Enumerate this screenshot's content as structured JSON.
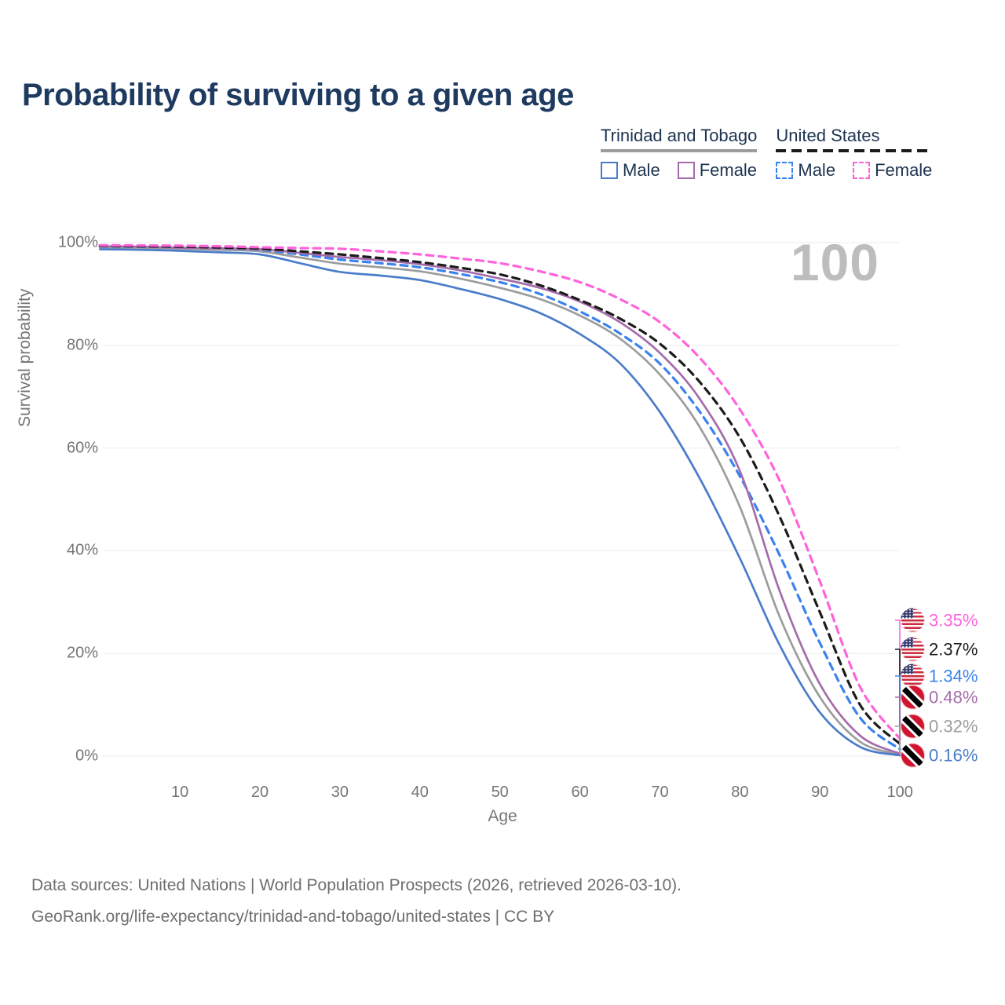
{
  "title": "Probability of surviving to a given age",
  "watermark": "100",
  "legend": {
    "groups": [
      {
        "name": "Trinidad and Tobago",
        "line_style": "solid",
        "rule_color": "#9c9c9c",
        "items": [
          {
            "label": "Male",
            "color": "#4a7cc9",
            "dashed": false
          },
          {
            "label": "Female",
            "color": "#a56cab",
            "dashed": false
          }
        ]
      },
      {
        "name": "United States",
        "line_style": "dashed",
        "rule_color": "#1a1a1a",
        "items": [
          {
            "label": "Male",
            "color": "#3b82ee",
            "dashed": true
          },
          {
            "label": "Female",
            "color": "#ff63dc",
            "dashed": true
          }
        ]
      }
    ]
  },
  "chart_data": {
    "type": "line",
    "title": "Probability of surviving to a given age",
    "xlabel": "Age",
    "ylabel": "Survival probability",
    "xlim": [
      0,
      100
    ],
    "ylim": [
      0,
      100
    ],
    "grid": "horizontal",
    "x_ticks": [
      10,
      20,
      30,
      40,
      50,
      60,
      70,
      80,
      90,
      100
    ],
    "y_ticks": [
      "0%",
      "20%",
      "40%",
      "60%",
      "80%",
      "100%"
    ],
    "x": [
      0,
      5,
      10,
      15,
      20,
      25,
      30,
      35,
      40,
      45,
      50,
      55,
      60,
      65,
      70,
      75,
      80,
      85,
      90,
      95,
      100
    ],
    "series": [
      {
        "name": "Trinidad and Tobago — Total",
        "country": "tt",
        "color": "#9c9c9c",
        "dashed": false,
        "values": [
          99.1,
          99.0,
          98.8,
          98.6,
          98.3,
          97.1,
          95.9,
          95.2,
          94.4,
          93.0,
          91.2,
          89.0,
          85.8,
          81.3,
          74.3,
          64.0,
          48.5,
          27.0,
          11.5,
          2.8,
          0.32
        ],
        "end_label": "0.32%"
      },
      {
        "name": "Trinidad and Tobago — Male",
        "country": "tt",
        "color": "#4a7cc9",
        "dashed": false,
        "values": [
          98.7,
          98.6,
          98.4,
          98.1,
          97.7,
          96.0,
          94.3,
          93.6,
          92.7,
          91.0,
          89.0,
          86.3,
          82.2,
          76.5,
          67.0,
          54.0,
          38.5,
          21.5,
          8.5,
          1.8,
          0.16
        ],
        "end_label": "0.16%"
      },
      {
        "name": "United States — Male",
        "country": "us",
        "color": "#3b82ee",
        "dashed": true,
        "values": [
          99.3,
          99.2,
          99.1,
          98.9,
          98.6,
          97.7,
          96.7,
          96.0,
          95.2,
          93.9,
          92.3,
          90.0,
          86.6,
          82.3,
          76.4,
          67.0,
          54.5,
          39.0,
          22.0,
          7.5,
          1.34
        ],
        "end_label": "1.34%"
      },
      {
        "name": "Trinidad and Tobago — Female",
        "country": "tt",
        "color": "#a56cab",
        "dashed": false,
        "values": [
          99.3,
          99.2,
          99.0,
          98.9,
          98.7,
          98.0,
          97.2,
          96.6,
          95.8,
          94.6,
          93.0,
          91.2,
          88.5,
          84.5,
          78.5,
          69.5,
          55.5,
          32.0,
          14.0,
          4.0,
          0.48
        ],
        "end_label": "0.48%"
      },
      {
        "name": "United States — Total",
        "country": "us",
        "color": "#1c1c1c",
        "dashed": true,
        "values": [
          99.4,
          99.3,
          99.2,
          99.05,
          98.85,
          98.3,
          97.7,
          97.0,
          96.2,
          95.1,
          93.8,
          91.7,
          88.8,
          85.2,
          80.3,
          72.8,
          62.0,
          46.5,
          28.0,
          10.0,
          2.37
        ],
        "end_label": "2.37%"
      },
      {
        "name": "United States — Female",
        "country": "us",
        "color": "#ff63dc",
        "dashed": true,
        "values": [
          99.5,
          99.45,
          99.4,
          99.3,
          99.1,
          98.95,
          98.8,
          98.3,
          97.7,
          96.9,
          96.0,
          94.4,
          92.3,
          89.0,
          84.5,
          77.5,
          67.5,
          53.5,
          34.0,
          13.5,
          3.35
        ],
        "end_label": "3.35%"
      }
    ],
    "end_label_order": [
      "3.35%",
      "2.37%",
      "1.34%",
      "0.48%",
      "0.32%",
      "0.16%"
    ]
  },
  "footer": {
    "line1": "Data sources: United Nations | World Population Prospects (2026, retrieved 2026-03-10).",
    "line2": "GeoRank.org/life-expectancy/trinidad-and-tobago/united-states | CC BY"
  }
}
